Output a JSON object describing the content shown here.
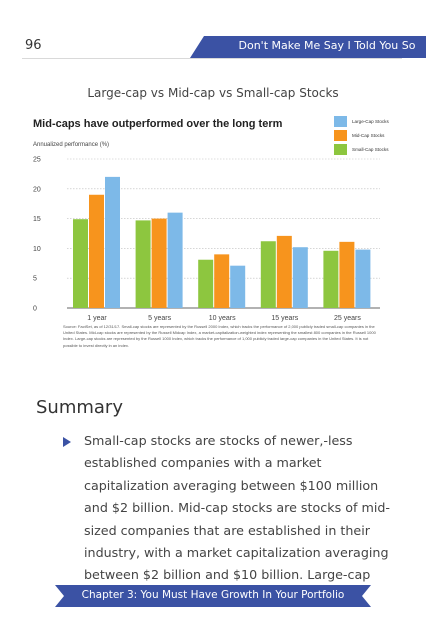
{
  "header": {
    "page_number": "96",
    "book_title": "Don't Make Me Say I Told You So",
    "band_color": "#3b52a4"
  },
  "figure_caption": "Large-cap vs Mid-cap vs Small-cap Stocks",
  "chart_data": {
    "type": "bar",
    "title": "Mid-caps have outperformed over the long term",
    "ylabel": "Annualized performance (%)",
    "xlabel": "",
    "categories": [
      "1 year",
      "5 years",
      "10 years",
      "15 years",
      "25 years"
    ],
    "series": [
      {
        "name": "Small-Cap Stocks",
        "color": "#8dc63f",
        "values": [
          14.9,
          14.7,
          8.1,
          11.2,
          9.6
        ]
      },
      {
        "name": "Mid-Cap Stocks",
        "color": "#f7941d",
        "values": [
          19.0,
          15.0,
          9.0,
          12.1,
          11.1
        ]
      },
      {
        "name": "Large-Cap Stocks",
        "color": "#7db9e8",
        "values": [
          22.0,
          16.0,
          7.1,
          10.2,
          9.8
        ]
      }
    ],
    "legend_order": [
      "Large-Cap Stocks",
      "Mid-Cap Stocks",
      "Small-Cap Stocks"
    ],
    "ylim": [
      0,
      25
    ],
    "yticks": [
      0,
      5,
      10,
      15,
      20,
      25
    ],
    "grid": true,
    "legend_position": "top-right"
  },
  "source_note": "Source: FactSet, as of 12/31/17. Small-cap stocks are represented by the Russell 2000 Index, which tracks the performance of 2,000 publicly traded small-cap companies in the United States. Mid-cap stocks are represented by the Russell Midcap Index, a market-capitalization-weighted index representing the smallest 800 companies in the Russell 1000 Index. Large-cap stocks are represented by the Russell 1000 Index, which tracks the performance of 1,000 publicly traded large-cap companies in the United States. It is not possible to invest directly in an index.",
  "summary": {
    "heading": "Summary",
    "body": "Small-cap stocks are stocks of newer,-less established companies with a market capitalization averaging between $100 million and $2 billion. Mid-cap stocks are stocks of mid-sized companies that are established in their industry, with a market capitalization averaging between $2 billion and $10 billion. Large-cap stocks"
  },
  "footer": {
    "chapter": "Chapter 3: You Must Have Growth In Your Portfolio"
  }
}
